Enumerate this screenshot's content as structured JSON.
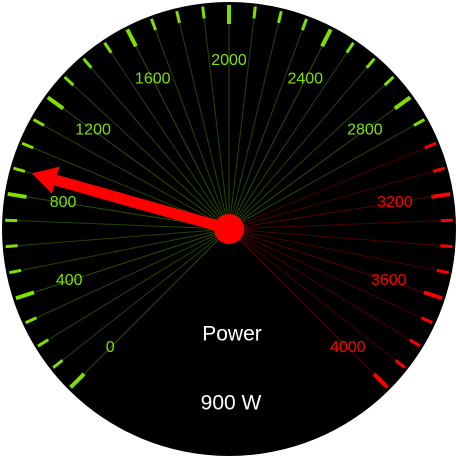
{
  "chart_data": {
    "type": "gauge",
    "title": "Power",
    "values": [
      900
    ],
    "value_labels": [
      "900 W"
    ],
    "ylim": [
      0,
      4000
    ],
    "yticks": [
      0,
      400,
      800,
      1200,
      1600,
      2000,
      2400,
      2800,
      3200,
      3600,
      4000
    ],
    "color": "#7fe000",
    "needle_color": "#ff0000",
    "bands": [
      {
        "from": 3000,
        "to": 4000,
        "color": "#ff0000"
      }
    ]
  }
}
